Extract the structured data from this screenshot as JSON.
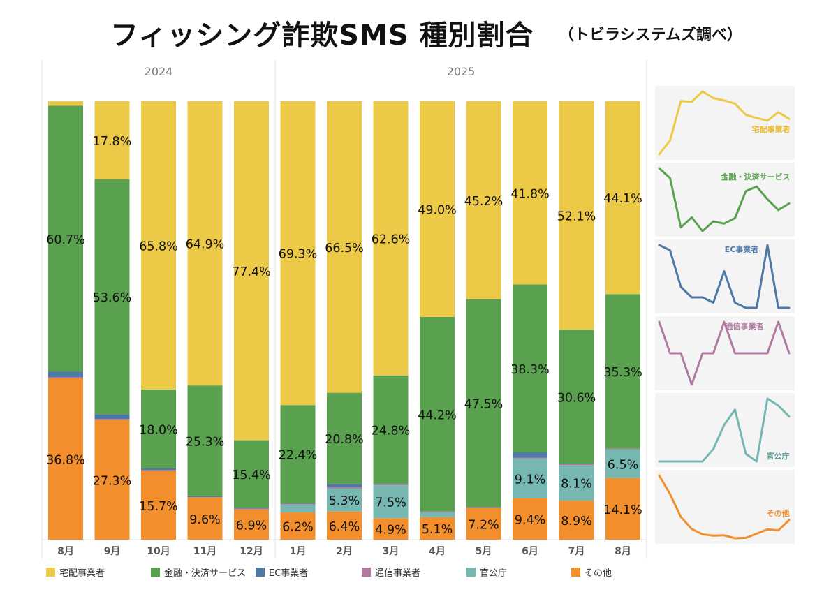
{
  "chart_data": {
    "type": "bar",
    "stacked": true,
    "normalized": true,
    "title": "フィッシング詐欺SMS 種別割合",
    "subtitle": "（トビラシステムズ調べ）",
    "year_labels": [
      "2024",
      "2025"
    ],
    "categories": [
      "8月",
      "9月",
      "10月",
      "11月",
      "12月",
      "1月",
      "2月",
      "3月",
      "4月",
      "5月",
      "6月",
      "7月",
      "8月"
    ],
    "series": [
      {
        "name": "その他",
        "color": "#F28E2B",
        "values": [
          36.8,
          27.3,
          15.7,
          9.6,
          6.9,
          6.2,
          6.4,
          4.9,
          5.1,
          7.2,
          9.4,
          8.9,
          14.1
        ]
      },
      {
        "name": "官公庁",
        "color": "#76B7B2",
        "values": [
          0.0,
          0.0,
          0.0,
          0.0,
          0.0,
          1.8,
          5.3,
          7.5,
          1.1,
          0.0,
          9.1,
          8.1,
          6.5
        ]
      },
      {
        "name": "通信事業者",
        "color": "#B07AA1",
        "values": [
          0.3,
          0.2,
          0.2,
          0.1,
          0.2,
          0.2,
          0.3,
          0.2,
          0.2,
          0.2,
          0.2,
          0.3,
          0.2
        ]
      },
      {
        "name": "EC事業者",
        "color": "#4E79A7",
        "values": [
          1.2,
          1.1,
          0.4,
          0.2,
          0.2,
          0.1,
          0.7,
          0.1,
          0.0,
          0.0,
          1.2,
          0.0,
          0.0
        ]
      },
      {
        "name": "金融・決済サービス",
        "color": "#59A14F",
        "values": [
          60.7,
          53.6,
          18.0,
          25.3,
          15.4,
          22.4,
          20.8,
          24.8,
          44.2,
          47.5,
          38.3,
          30.6,
          35.3
        ]
      },
      {
        "name": "宅配事業者",
        "color": "#EDC948",
        "values": [
          1.0,
          17.8,
          65.8,
          64.9,
          77.4,
          69.3,
          66.5,
          62.6,
          49.0,
          45.2,
          41.8,
          52.1,
          44.1
        ]
      }
    ],
    "labeled_series": [
      "その他",
      "官公庁",
      "金融・決済サービス",
      "宅配事業者"
    ],
    "value_labels": {
      "その他": [
        "36.8%",
        "27.3%",
        "15.7%",
        "9.6%",
        "6.9%",
        "6.2%",
        "6.4%",
        "4.9%",
        "5.1%",
        "7.2%",
        "9.4%",
        "8.9%",
        "14.1%"
      ],
      "官公庁": [
        "",
        "",
        "",
        "",
        "",
        "",
        "5.3%",
        "7.5%",
        "",
        "",
        "9.1%",
        "8.1%",
        "6.5%"
      ],
      "金融・決済サービス": [
        "60.7%",
        "53.6%",
        "18.0%",
        "25.3%",
        "15.4%",
        "22.4%",
        "20.8%",
        "24.8%",
        "44.2%",
        "47.5%",
        "38.3%",
        "30.6%",
        "35.3%"
      ],
      "宅配事業者": [
        "",
        "17.8%",
        "65.8%",
        "64.9%",
        "77.4%",
        "69.3%",
        "66.5%",
        "62.6%",
        "49.0%",
        "45.2%",
        "41.8%",
        "52.1%",
        "44.1%"
      ]
    },
    "legend": [
      {
        "name": "宅配事業者",
        "color": "#EDC948"
      },
      {
        "name": "金融・決済サービス",
        "color": "#59A14F"
      },
      {
        "name": "EC事業者",
        "color": "#4E79A7"
      },
      {
        "name": "通信事業者",
        "color": "#B07AA1"
      },
      {
        "name": "官公庁",
        "color": "#76B7B2"
      },
      {
        "name": "その他",
        "color": "#F28E2B"
      }
    ],
    "legend_position": "bottom",
    "ylim": [
      0,
      100
    ],
    "sparklines": [
      {
        "name": "宅配事業者",
        "label": "宅配事業者",
        "color": "#EDC948",
        "label_color": "#E8B830"
      },
      {
        "name": "金融・決済サービス",
        "label": "金融・決済サービス",
        "color": "#59A14F",
        "label_color": "#59A14F"
      },
      {
        "name": "EC事業者",
        "label": "EC事業者",
        "color": "#4E79A7",
        "label_color": "#4E79A7"
      },
      {
        "name": "通信事業者",
        "label": "通信事業者",
        "color": "#B07AA1",
        "label_color": "#B07AA1"
      },
      {
        "name": "官公庁",
        "label": "官公庁",
        "color": "#76B7B2",
        "label_color": "#5E9E99"
      },
      {
        "name": "その他",
        "label": "その他",
        "color": "#F28E2B",
        "label_color": "#F28E2B"
      }
    ]
  }
}
